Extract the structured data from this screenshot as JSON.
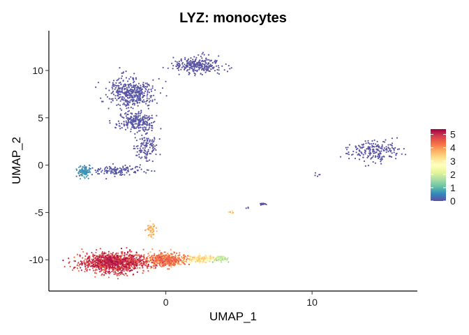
{
  "chart_data": {
    "type": "scatter",
    "title": "LYZ: monocytes",
    "xlabel": "UMAP_1",
    "ylabel": "UMAP_2",
    "xlim": [
      -8.0,
      17.2
    ],
    "ylim": [
      -13.3,
      14.2
    ],
    "x_ticks": [
      0,
      10
    ],
    "x_tick_labels": [
      "0",
      "10"
    ],
    "y_ticks": [
      10,
      5,
      0,
      -5,
      -10
    ],
    "y_tick_labels": [
      "10",
      "5",
      "0",
      "-5",
      "-10"
    ],
    "grid": false,
    "legend": {
      "placement": "right",
      "type": "colorbar",
      "min": 0,
      "max": 5.4,
      "ticks": [
        5,
        4,
        3,
        2,
        1,
        0
      ],
      "tick_labels": [
        "5",
        "4",
        "3",
        "2",
        "1",
        "0"
      ]
    },
    "colors": {
      "low": "#5E4FA2",
      "scale": [
        "#5E4FA2",
        "#3288BD",
        "#66C2A5",
        "#ABDDA4",
        "#E6F598",
        "#FFFFBF",
        "#FEE08B",
        "#FDAE61",
        "#F46D43",
        "#D53E4F",
        "#9E0142"
      ]
    },
    "clusters": [
      {
        "label": "top-center",
        "center": [
          2.2,
          10.6
        ],
        "spread": [
          1.5,
          0.8
        ],
        "n": 260,
        "expr": [
          0.0,
          0.08
        ]
      },
      {
        "label": "upper-left",
        "center": [
          -2.4,
          7.6
        ],
        "spread": [
          1.4,
          1.4
        ],
        "n": 420,
        "expr": [
          0.0,
          0.12
        ]
      },
      {
        "label": "upper-left-tail",
        "center": [
          -2.0,
          4.6
        ],
        "spread": [
          1.2,
          0.9
        ],
        "n": 240,
        "expr": [
          0.0,
          0.12
        ]
      },
      {
        "label": "stalk",
        "center": [
          -1.3,
          2.0
        ],
        "spread": [
          0.7,
          1.4
        ],
        "n": 120,
        "expr": [
          0.0,
          0.1
        ]
      },
      {
        "label": "left-small",
        "center": [
          -5.6,
          -0.7
        ],
        "spread": [
          0.4,
          0.5
        ],
        "n": 110,
        "expr": [
          0.3,
          0.8
        ]
      },
      {
        "label": "bridge",
        "center": [
          -3.3,
          -0.6
        ],
        "spread": [
          1.6,
          0.5
        ],
        "n": 130,
        "expr": [
          0.0,
          0.15
        ]
      },
      {
        "label": "right",
        "center": [
          14.2,
          1.5
        ],
        "spread": [
          1.6,
          1.0
        ],
        "n": 200,
        "expr": [
          0.0,
          0.1
        ]
      },
      {
        "label": "dot-a",
        "center": [
          6.6,
          -4.1
        ],
        "spread": [
          0.2,
          0.1
        ],
        "n": 25,
        "expr": [
          0.0,
          0.05
        ]
      },
      {
        "label": "dot-b",
        "center": [
          10.4,
          -1.0
        ],
        "spread": [
          0.2,
          0.2
        ],
        "n": 5,
        "expr": [
          0.0,
          0.05
        ]
      },
      {
        "label": "dot-c",
        "center": [
          4.5,
          -5.0
        ],
        "spread": [
          0.2,
          0.1
        ],
        "n": 8,
        "expr": [
          2.5,
          4.0
        ]
      },
      {
        "label": "dot-d",
        "center": [
          5.6,
          -4.5
        ],
        "spread": [
          0.1,
          0.1
        ],
        "n": 3,
        "expr": [
          0.0,
          0.1
        ]
      },
      {
        "label": "bottom-main",
        "center": [
          -3.5,
          -10.3
        ],
        "spread": [
          2.0,
          0.9
        ],
        "n": 1200,
        "expr": [
          4.2,
          5.3
        ]
      },
      {
        "label": "bottom-mid",
        "center": [
          0.0,
          -10.0
        ],
        "spread": [
          1.1,
          0.6
        ],
        "n": 450,
        "expr": [
          3.6,
          4.6
        ]
      },
      {
        "label": "bottom-tail",
        "center": [
          2.3,
          -9.9
        ],
        "spread": [
          0.9,
          0.35
        ],
        "n": 180,
        "expr": [
          2.4,
          3.6
        ]
      },
      {
        "label": "bottom-tip",
        "center": [
          3.7,
          -9.9
        ],
        "spread": [
          0.45,
          0.25
        ],
        "n": 80,
        "expr": [
          1.2,
          2.2
        ]
      },
      {
        "label": "bottom-spur",
        "center": [
          -1.0,
          -6.8
        ],
        "spread": [
          0.25,
          0.7
        ],
        "n": 60,
        "expr": [
          3.0,
          4.0
        ]
      }
    ]
  }
}
